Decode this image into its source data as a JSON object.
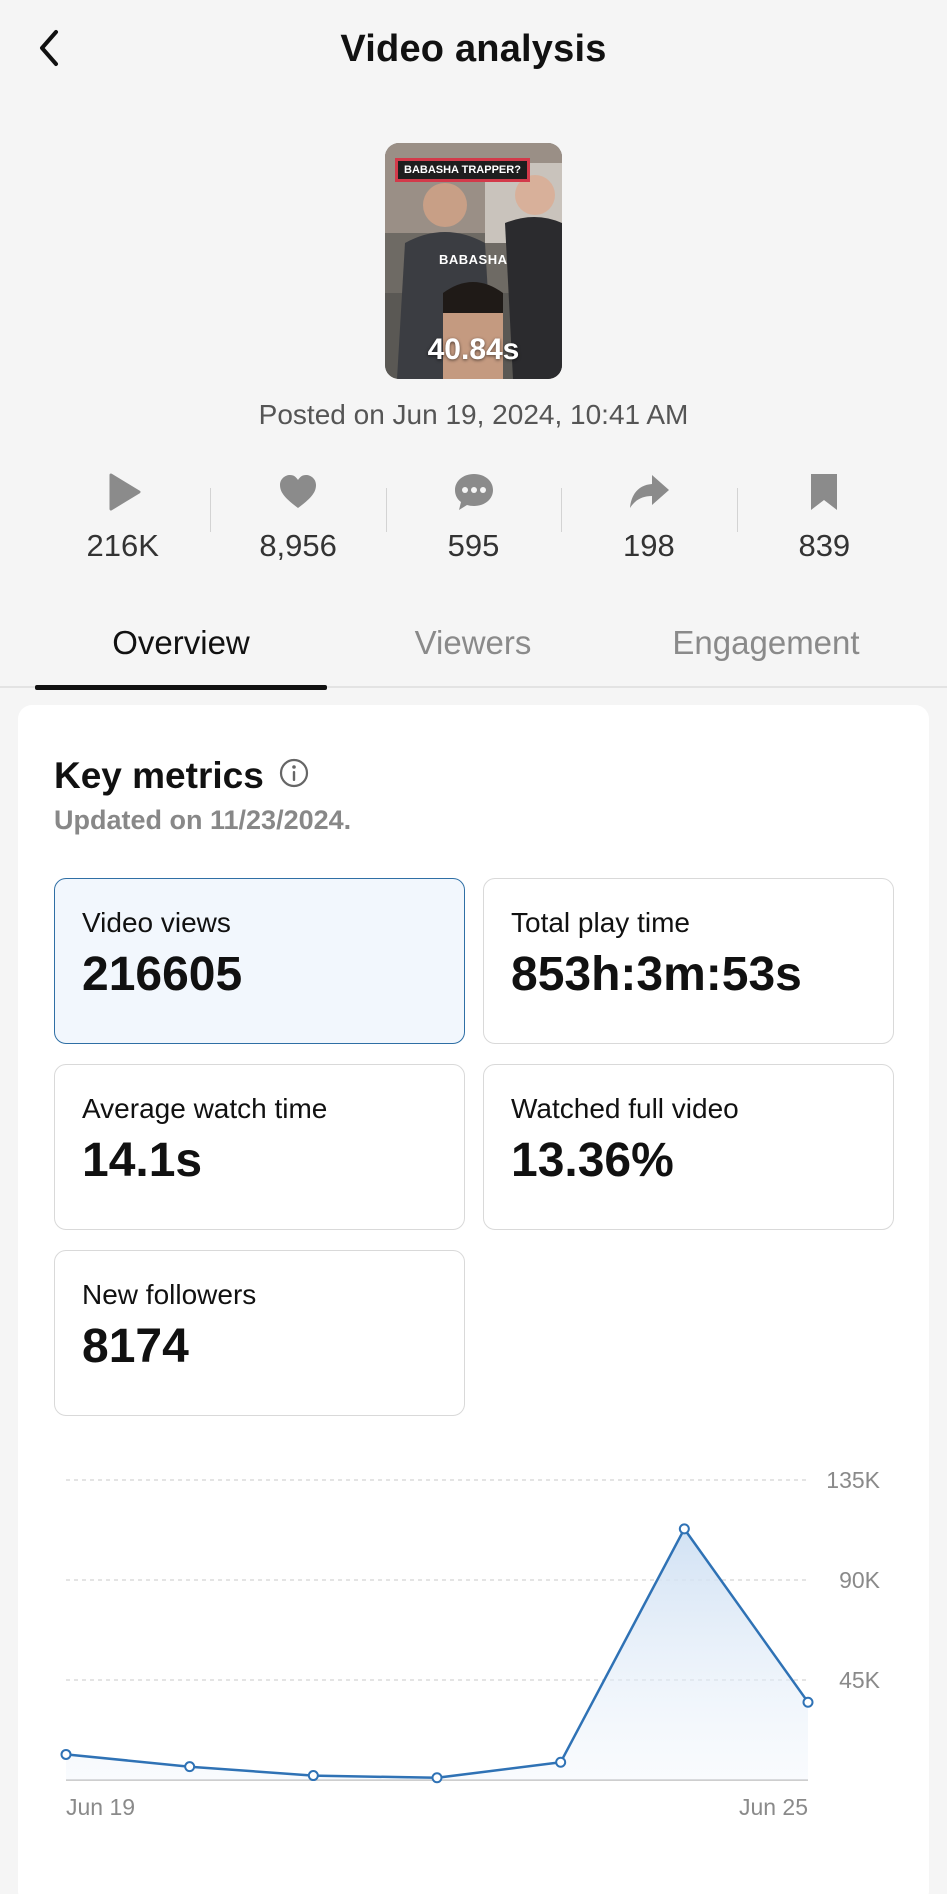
{
  "header": {
    "title": "Video analysis"
  },
  "video": {
    "thumbnail_tag": "BABASHA TRAPPER?",
    "thumbnail_mid_text": "BABASHA",
    "duration": "40.84s",
    "posted": "Posted on Jun 19, 2024, 10:41 AM"
  },
  "stats": [
    {
      "icon": "play-icon",
      "value": "216K"
    },
    {
      "icon": "heart-icon",
      "value": "8,956"
    },
    {
      "icon": "comment-icon",
      "value": "595"
    },
    {
      "icon": "share-icon",
      "value": "198"
    },
    {
      "icon": "bookmark-icon",
      "value": "839"
    }
  ],
  "tabs": [
    {
      "label": "Overview",
      "active": true
    },
    {
      "label": "Viewers",
      "active": false
    },
    {
      "label": "Engagement",
      "active": false
    }
  ],
  "key_metrics": {
    "title": "Key metrics",
    "updated": "Updated on 11/23/2024.",
    "metrics": [
      {
        "label": "Video views",
        "value": "216605",
        "selected": true
      },
      {
        "label": "Total play time",
        "value": "853h:3m:53s",
        "selected": false
      },
      {
        "label": "Average watch time",
        "value": "14.1s",
        "selected": false
      },
      {
        "label": "Watched full video",
        "value": "13.36%",
        "selected": false
      },
      {
        "label": "New followers",
        "value": "8174",
        "selected": false
      }
    ]
  },
  "colors": {
    "accent": "#2f6fa5",
    "selected_bg": "#f2f7fd"
  },
  "chart_data": {
    "type": "area",
    "x": [
      "Jun 19",
      "Jun 20",
      "Jun 21",
      "Jun 22",
      "Jun 23",
      "Jun 24",
      "Jun 25"
    ],
    "values": [
      11500,
      6000,
      2000,
      1000,
      8000,
      113000,
      35000
    ],
    "y_ticks": [
      "135K",
      "90K",
      "45K"
    ],
    "y_tick_values": [
      135000,
      90000,
      45000
    ],
    "x_labels": [
      "Jun 19",
      "Jun 25"
    ],
    "ylim": [
      0,
      135000
    ],
    "grid": true
  }
}
